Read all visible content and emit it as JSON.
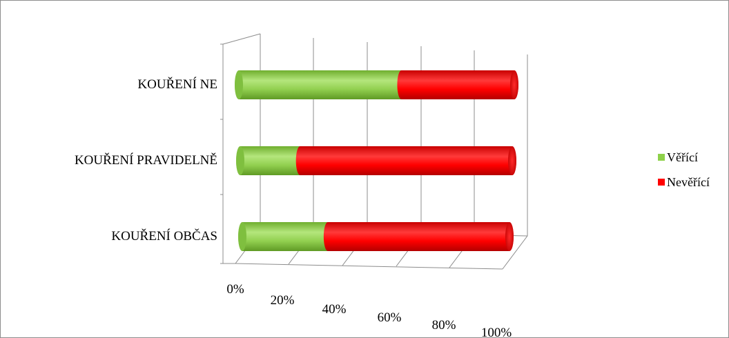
{
  "chart_data": {
    "type": "bar",
    "orientation": "horizontal",
    "stacked": "percent",
    "style": "3d-cylinder",
    "categories": [
      "KOUŘENÍ NE",
      "KOUŘENÍ PRAVIDELNĚ",
      "KOUŘENÍ OBČAS"
    ],
    "series": [
      {
        "name": "Věřící",
        "color": "#8ed14a",
        "values": [
          59,
          22,
          32
        ]
      },
      {
        "name": "Nevěřící",
        "color": "#ff0000",
        "values": [
          41,
          78,
          68
        ]
      }
    ],
    "xlim": [
      0,
      100
    ],
    "x_ticks": [
      "0%",
      "20%",
      "40%",
      "60%",
      "80%",
      "100%"
    ],
    "grid": true,
    "legend_position": "right",
    "title": "",
    "xlabel": "",
    "ylabel": ""
  }
}
